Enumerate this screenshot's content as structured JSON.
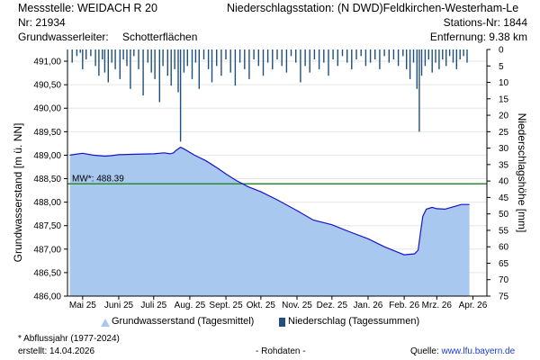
{
  "header": {
    "station_title": "Messstelle: WEIDACH R 20",
    "station_nr": "Nr: 21934",
    "aquifer_label": "Grundwasserleiter:",
    "aquifer_value": "Schotterflächen",
    "precip_title": "Niederschlagsstation: (N DWD)Feldkirchen-Westerham-Le",
    "precip_nr": "Stations-Nr: 1844",
    "distance": "Entfernung: 9.38 km"
  },
  "legend": {
    "groundwater": "Grundwasserstand (Tagesmittel)",
    "precip": "Niederschlag (Tagessummen)"
  },
  "footer": {
    "note": "* Abflussjahr (1977-2024)",
    "created": "erstellt:  14.04.2026",
    "raw": "- Rohdaten -",
    "source_label": "Quelle:",
    "source_url": "www.lfu.bayern.de"
  },
  "colors": {
    "groundwater_fill": "#a8c8f0",
    "groundwater_line": "#1515c8",
    "precip_bar": "#1f4f7f",
    "mean_line": "#2e8b2e"
  },
  "chart_data": {
    "type": "area",
    "ylabel": "Grundwasserstand [m ü. NN]",
    "y2label": "Niederschlagshöhe [mm]",
    "ylim": [
      486.0,
      491.25
    ],
    "y2lim": [
      0,
      75
    ],
    "yticks": [
      "486,00",
      "486,50",
      "487,00",
      "487,50",
      "488,00",
      "488,50",
      "489,00",
      "489,50",
      "490,00",
      "490,50",
      "491,00"
    ],
    "y2ticks": [
      "0",
      "5",
      "10",
      "15",
      "20",
      "25",
      "30",
      "35",
      "40",
      "45",
      "50",
      "55",
      "60",
      "65",
      "70",
      "75"
    ],
    "xticks": [
      "Mai 25",
      "Juni 25",
      "Juli 25",
      "Aug. 25",
      "Sept. 25",
      "Okt. 25",
      "Nov. 25",
      "Dez. 25",
      "Jan. 26",
      "Feb. 26",
      "Mrz. 26",
      "Apr. 26"
    ],
    "mean": {
      "label": "MW*: 488.39",
      "value": 488.39
    },
    "groundwater": [
      [
        "2025-04-20",
        489.0
      ],
      [
        "2025-04-25",
        489.02
      ],
      [
        "2025-05-01",
        489.04
      ],
      [
        "2025-05-10",
        489.0
      ],
      [
        "2025-05-20",
        488.98
      ],
      [
        "2025-05-25",
        488.99
      ],
      [
        "2025-06-01",
        489.01
      ],
      [
        "2025-06-15",
        489.02
      ],
      [
        "2025-07-01",
        489.03
      ],
      [
        "2025-07-10",
        489.05
      ],
      [
        "2025-07-15",
        489.03
      ],
      [
        "2025-07-18",
        489.05
      ],
      [
        "2025-07-20",
        489.1
      ],
      [
        "2025-07-24",
        489.17
      ],
      [
        "2025-07-28",
        489.12
      ],
      [
        "2025-08-05",
        489.0
      ],
      [
        "2025-08-15",
        488.88
      ],
      [
        "2025-08-25",
        488.72
      ],
      [
        "2025-09-01",
        488.6
      ],
      [
        "2025-09-10",
        488.46
      ],
      [
        "2025-09-20",
        488.33
      ],
      [
        "2025-10-01",
        488.22
      ],
      [
        "2025-10-15",
        488.05
      ],
      [
        "2025-11-01",
        487.82
      ],
      [
        "2025-11-15",
        487.62
      ],
      [
        "2025-12-01",
        487.52
      ],
      [
        "2025-12-15",
        487.38
      ],
      [
        "2026-01-01",
        487.22
      ],
      [
        "2026-01-15",
        487.05
      ],
      [
        "2026-01-25",
        486.95
      ],
      [
        "2026-02-01",
        486.88
      ],
      [
        "2026-02-10",
        486.9
      ],
      [
        "2026-02-13",
        486.98
      ],
      [
        "2026-02-15",
        487.35
      ],
      [
        "2026-02-17",
        487.7
      ],
      [
        "2026-02-20",
        487.85
      ],
      [
        "2026-02-25",
        487.89
      ],
      [
        "2026-03-01",
        487.86
      ],
      [
        "2026-03-08",
        487.85
      ],
      [
        "2026-03-15",
        487.9
      ],
      [
        "2026-03-22",
        487.95
      ],
      [
        "2026-03-29",
        487.95
      ]
    ],
    "precipitation": [
      [
        "2025-04-22",
        4
      ],
      [
        "2025-04-26",
        2
      ],
      [
        "2025-04-29",
        1
      ],
      [
        "2025-05-01",
        6
      ],
      [
        "2025-05-04",
        3
      ],
      [
        "2025-05-08",
        2
      ],
      [
        "2025-05-12",
        5
      ],
      [
        "2025-05-15",
        8
      ],
      [
        "2025-05-18",
        3
      ],
      [
        "2025-05-20",
        7
      ],
      [
        "2025-05-23",
        10
      ],
      [
        "2025-05-26",
        4
      ],
      [
        "2025-05-29",
        6
      ],
      [
        "2025-06-02",
        9
      ],
      [
        "2025-06-05",
        3
      ],
      [
        "2025-06-08",
        5
      ],
      [
        "2025-06-11",
        12
      ],
      [
        "2025-06-14",
        2
      ],
      [
        "2025-06-18",
        6
      ],
      [
        "2025-06-22",
        14
      ],
      [
        "2025-06-26",
        4
      ],
      [
        "2025-06-29",
        7
      ],
      [
        "2025-07-02",
        9
      ],
      [
        "2025-07-06",
        16
      ],
      [
        "2025-07-09",
        5
      ],
      [
        "2025-07-13",
        8
      ],
      [
        "2025-07-16",
        11
      ],
      [
        "2025-07-19",
        6
      ],
      [
        "2025-07-22",
        13
      ],
      [
        "2025-07-24",
        28
      ],
      [
        "2025-07-27",
        7
      ],
      [
        "2025-07-30",
        5
      ],
      [
        "2025-08-03",
        9
      ],
      [
        "2025-08-06",
        4
      ],
      [
        "2025-08-09",
        12
      ],
      [
        "2025-08-13",
        3
      ],
      [
        "2025-08-17",
        6
      ],
      [
        "2025-08-20",
        10
      ],
      [
        "2025-08-24",
        5
      ],
      [
        "2025-08-28",
        8
      ],
      [
        "2025-09-01",
        3
      ],
      [
        "2025-09-05",
        7
      ],
      [
        "2025-09-09",
        11
      ],
      [
        "2025-09-13",
        4
      ],
      [
        "2025-09-17",
        6
      ],
      [
        "2025-09-21",
        9
      ],
      [
        "2025-09-25",
        3
      ],
      [
        "2025-09-29",
        5
      ],
      [
        "2025-10-03",
        8
      ],
      [
        "2025-10-07",
        4
      ],
      [
        "2025-10-11",
        6
      ],
      [
        "2025-10-15",
        3
      ],
      [
        "2025-10-19",
        5
      ],
      [
        "2025-10-23",
        7
      ],
      [
        "2025-10-27",
        2
      ],
      [
        "2025-10-31",
        4
      ],
      [
        "2025-11-04",
        10
      ],
      [
        "2025-11-08",
        5
      ],
      [
        "2025-11-12",
        7
      ],
      [
        "2025-11-16",
        3
      ],
      [
        "2025-11-20",
        6
      ],
      [
        "2025-11-24",
        4
      ],
      [
        "2025-11-28",
        8
      ],
      [
        "2025-12-02",
        3
      ],
      [
        "2025-12-06",
        5
      ],
      [
        "2025-12-10",
        2
      ],
      [
        "2025-12-14",
        4
      ],
      [
        "2025-12-18",
        6
      ],
      [
        "2025-12-22",
        3
      ],
      [
        "2025-12-26",
        2
      ],
      [
        "2025-12-30",
        5
      ],
      [
        "2026-01-03",
        4
      ],
      [
        "2026-01-07",
        3
      ],
      [
        "2026-01-11",
        6
      ],
      [
        "2026-01-15",
        2
      ],
      [
        "2026-01-19",
        4
      ],
      [
        "2026-01-23",
        3
      ],
      [
        "2026-01-27",
        5
      ],
      [
        "2026-01-31",
        2
      ],
      [
        "2026-02-03",
        6
      ],
      [
        "2026-02-06",
        9
      ],
      [
        "2026-02-09",
        4
      ],
      [
        "2026-02-12",
        12
      ],
      [
        "2026-02-14",
        25
      ],
      [
        "2026-02-16",
        8
      ],
      [
        "2026-02-19",
        5
      ],
      [
        "2026-02-22",
        3
      ],
      [
        "2026-02-25",
        7
      ],
      [
        "2026-02-28",
        4
      ],
      [
        "2026-03-03",
        6
      ],
      [
        "2026-03-06",
        3
      ],
      [
        "2026-03-09",
        5
      ],
      [
        "2026-03-12",
        2
      ],
      [
        "2026-03-15",
        4
      ],
      [
        "2026-03-18",
        6
      ],
      [
        "2026-03-21",
        3
      ],
      [
        "2026-03-24",
        2
      ],
      [
        "2026-03-27",
        4
      ]
    ]
  }
}
